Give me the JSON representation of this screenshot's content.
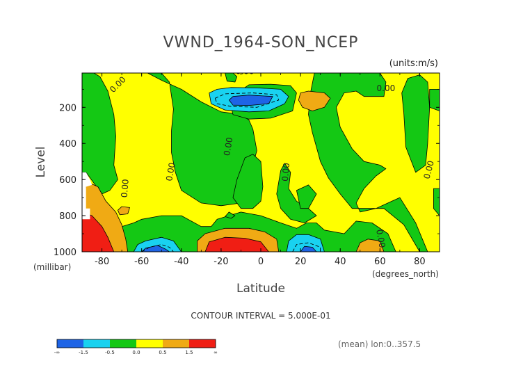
{
  "chart_data": {
    "type": "heatmap",
    "title": "VWND_1964-SON_NCEP",
    "units": "(units:m/s)",
    "xlabel": "Latitude",
    "x_units": "(degrees_north)",
    "ylabel": "Level",
    "y_units": "(millibar)",
    "xlim": [
      -90,
      90
    ],
    "ylim": [
      1000,
      10
    ],
    "y_scale": "linear, inverted (pressure increasing downward)",
    "x_ticks": [
      "-80",
      "-60",
      "-40",
      "-20",
      "0",
      "20",
      "40",
      "60",
      "80"
    ],
    "x_tick_values": [
      -80,
      -60,
      -40,
      -20,
      0,
      20,
      40,
      60,
      80
    ],
    "y_ticks": [
      "200",
      "400",
      "600",
      "800",
      "1000"
    ],
    "y_tick_values": [
      200,
      400,
      600,
      800,
      1000
    ],
    "contour_interval_text": "CONTOUR INTERVAL = 5.000E-01",
    "footer_text": "(mean) lon:0..357.5",
    "contour_labels": [
      "0.00",
      "0.00",
      "0.00",
      "0.00",
      "0.00",
      "0.00",
      "0.00",
      "0.00",
      "0.00"
    ],
    "colorbar": {
      "colors": [
        "#1e64e6",
        "#19d2f0",
        "#14c814",
        "#ffff00",
        "#f0aa14",
        "#f01e14"
      ],
      "tick_labels": [
        "-∞",
        "-1.5",
        "-0.5",
        "0.0",
        "0.5",
        "1.5",
        "∞"
      ]
    },
    "background_level_color": "#ffff00",
    "regions": [
      {
        "color": "#14c814",
        "points": [
          [
            -90,
            10
          ],
          [
            -84,
            10
          ],
          [
            -81,
            30
          ],
          [
            -77,
            110
          ],
          [
            -74,
            240
          ],
          [
            -73,
            360
          ],
          [
            -74,
            520
          ],
          [
            -72,
            600
          ],
          [
            -76,
            660
          ],
          [
            -80,
            680
          ],
          [
            -84,
            620
          ],
          [
            -88,
            560
          ],
          [
            -90,
            560
          ]
        ]
      },
      {
        "color": "#14c814",
        "points": [
          [
            -57,
            10
          ],
          [
            -50,
            10
          ],
          [
            -46,
            60
          ],
          [
            -44,
            210
          ],
          [
            -45,
            330
          ],
          [
            -45,
            450
          ],
          [
            -43,
            560
          ],
          [
            -40,
            660
          ],
          [
            -30,
            730
          ],
          [
            -20,
            745
          ],
          [
            -10,
            730
          ],
          [
            -5,
            560
          ],
          [
            -2,
            440
          ],
          [
            -4,
            320
          ],
          [
            -6,
            270
          ],
          [
            -10,
            240
          ],
          [
            -20,
            225
          ],
          [
            -30,
            170
          ],
          [
            -40,
            100
          ],
          [
            -50,
            50
          ]
        ]
      },
      {
        "color": "#14c814",
        "points": [
          [
            -18,
            10
          ],
          [
            -14,
            10
          ],
          [
            -12,
            30
          ],
          [
            -13,
            60
          ],
          [
            -17,
            55
          ]
        ]
      },
      {
        "color": "#14c814",
        "points": [
          [
            -16,
            150
          ],
          [
            -12,
            120
          ],
          [
            -6,
            75
          ],
          [
            5,
            72
          ],
          [
            15,
            80
          ],
          [
            18,
            120
          ],
          [
            16,
            220
          ],
          [
            5,
            260
          ],
          [
            -6,
            265
          ],
          [
            -14,
            240
          ]
        ]
      },
      {
        "color": "#14c814",
        "points": [
          [
            27,
            10
          ],
          [
            60,
            10
          ],
          [
            63,
            60
          ],
          [
            62,
            140
          ],
          [
            52,
            140
          ],
          [
            48,
            110
          ],
          [
            42,
            120
          ],
          [
            38,
            200
          ],
          [
            40,
            310
          ],
          [
            46,
            430
          ],
          [
            52,
            500
          ],
          [
            60,
            520
          ],
          [
            63,
            540
          ],
          [
            58,
            580
          ],
          [
            52,
            650
          ],
          [
            48,
            730
          ],
          [
            50,
            780
          ],
          [
            58,
            760
          ],
          [
            66,
            720
          ],
          [
            70,
            700
          ],
          [
            78,
            840
          ],
          [
            84,
            1000
          ],
          [
            80,
            1000
          ],
          [
            72,
            850
          ],
          [
            62,
            760
          ],
          [
            53,
            760
          ],
          [
            46,
            760
          ],
          [
            40,
            680
          ],
          [
            34,
            590
          ],
          [
            30,
            500
          ],
          [
            28,
            420
          ],
          [
            26,
            340
          ],
          [
            24,
            240
          ],
          [
            25,
            120
          ]
        ]
      },
      {
        "color": "#14c814",
        "points": [
          [
            74,
            40
          ],
          [
            80,
            20
          ],
          [
            84,
            60
          ],
          [
            85,
            200
          ],
          [
            84,
            400
          ],
          [
            83,
            520
          ],
          [
            78,
            560
          ],
          [
            73,
            420
          ],
          [
            72,
            230
          ],
          [
            71,
            120
          ]
        ]
      },
      {
        "color": "#14c814",
        "points": [
          [
            85,
            100
          ],
          [
            90,
            100
          ],
          [
            90,
            220
          ],
          [
            85,
            200
          ]
        ]
      },
      {
        "color": "#14c814",
        "points": [
          [
            87,
            650
          ],
          [
            90,
            650
          ],
          [
            90,
            800
          ],
          [
            87,
            760
          ]
        ]
      },
      {
        "color": "#14c814",
        "points": [
          [
            -8,
            480
          ],
          [
            -4,
            460
          ],
          [
            0,
            500
          ],
          [
            1,
            640
          ],
          [
            0,
            720
          ],
          [
            -4,
            760
          ],
          [
            -10,
            760
          ],
          [
            -14,
            700
          ],
          [
            -12,
            600
          ]
        ]
      },
      {
        "color": "#14c814",
        "points": [
          [
            10,
            550
          ],
          [
            12,
            510
          ],
          [
            15,
            560
          ],
          [
            14,
            650
          ],
          [
            18,
            720
          ],
          [
            24,
            760
          ],
          [
            28,
            800
          ],
          [
            22,
            840
          ],
          [
            15,
            820
          ],
          [
            10,
            760
          ],
          [
            8,
            680
          ]
        ]
      },
      {
        "color": "#14c814",
        "points": [
          [
            18,
            660
          ],
          [
            24,
            630
          ],
          [
            28,
            680
          ],
          [
            24,
            760
          ],
          [
            20,
            760
          ]
        ]
      },
      {
        "color": "#14c814",
        "points": [
          [
            -56,
            1000
          ],
          [
            -75,
            1000
          ],
          [
            -75,
            920
          ],
          [
            -70,
            860
          ],
          [
            -64,
            840
          ],
          [
            -60,
            820
          ],
          [
            -50,
            800
          ],
          [
            -40,
            800
          ],
          [
            -30,
            860
          ],
          [
            -25,
            860
          ],
          [
            -22,
            820
          ],
          [
            -10,
            780
          ],
          [
            0,
            800
          ],
          [
            10,
            840
          ],
          [
            18,
            870
          ],
          [
            23,
            840
          ],
          [
            28,
            840
          ],
          [
            32,
            880
          ],
          [
            42,
            900
          ],
          [
            48,
            830
          ],
          [
            56,
            840
          ],
          [
            64,
            900
          ],
          [
            68,
            1000
          ]
        ]
      },
      {
        "color": "#14c814",
        "points": [
          [
            -18,
            805
          ],
          [
            -16,
            780
          ],
          [
            -13,
            800
          ],
          [
            -15,
            815
          ]
        ]
      },
      {
        "color": "#19d2f0",
        "points": [
          [
            -26,
            120
          ],
          [
            -22,
            100
          ],
          [
            -15,
            90
          ],
          [
            -2,
            92
          ],
          [
            10,
            100
          ],
          [
            14,
            140
          ],
          [
            12,
            180
          ],
          [
            4,
            220
          ],
          [
            -6,
            225
          ],
          [
            -18,
            215
          ],
          [
            -25,
            180
          ]
        ]
      },
      {
        "color": "#1e64e6",
        "points": [
          [
            -16,
            160
          ],
          [
            -14,
            140
          ],
          [
            -6,
            132
          ],
          [
            6,
            140
          ],
          [
            4,
            180
          ],
          [
            -6,
            190
          ],
          [
            -14,
            188
          ]
        ]
      },
      {
        "color": "#19d2f0",
        "points": [
          [
            -64,
            1000
          ],
          [
            -62,
            960
          ],
          [
            -58,
            940
          ],
          [
            -50,
            920
          ],
          [
            -44,
            940
          ],
          [
            -40,
            1000
          ]
        ]
      },
      {
        "color": "#1e64e6",
        "points": [
          [
            -60,
            1000
          ],
          [
            -58,
            980
          ],
          [
            -52,
            965
          ],
          [
            -48,
            985
          ],
          [
            -46,
            1000
          ]
        ]
      },
      {
        "color": "#19d2f0",
        "points": [
          [
            13,
            1000
          ],
          [
            14,
            940
          ],
          [
            18,
            905
          ],
          [
            24,
            905
          ],
          [
            30,
            930
          ],
          [
            32,
            1000
          ]
        ]
      },
      {
        "color": "#1e64e6",
        "points": [
          [
            20,
            1000
          ],
          [
            22,
            970
          ],
          [
            26,
            975
          ],
          [
            28,
            1000
          ]
        ]
      },
      {
        "color": "#f0aa14",
        "points": [
          [
            20,
            120
          ],
          [
            24,
            110
          ],
          [
            32,
            120
          ],
          [
            35,
            150
          ],
          [
            32,
            200
          ],
          [
            26,
            220
          ],
          [
            21,
            200
          ],
          [
            19,
            160
          ]
        ]
      },
      {
        "color": "#f0aa14",
        "points": [
          [
            -72,
            770
          ],
          [
            -70,
            750
          ],
          [
            -66,
            755
          ],
          [
            -67,
            790
          ],
          [
            -71,
            795
          ]
        ]
      },
      {
        "color": "#f0aa14",
        "points": [
          [
            -88,
            610
          ],
          [
            -82,
            640
          ],
          [
            -78,
            720
          ],
          [
            -73,
            780
          ],
          [
            -70,
            850
          ],
          [
            -68,
            930
          ],
          [
            -67,
            1000
          ],
          [
            -90,
            1000
          ]
        ]
      },
      {
        "color": "#f0aa14",
        "points": [
          [
            -32,
            1000
          ],
          [
            -32,
            940
          ],
          [
            -28,
            900
          ],
          [
            -18,
            870
          ],
          [
            -6,
            870
          ],
          [
            2,
            890
          ],
          [
            8,
            930
          ],
          [
            9,
            1000
          ]
        ]
      },
      {
        "color": "#f0aa14",
        "points": [
          [
            48,
            1000
          ],
          [
            50,
            950
          ],
          [
            54,
            930
          ],
          [
            60,
            940
          ],
          [
            62,
            1000
          ]
        ]
      },
      {
        "color": "#f01e14",
        "points": [
          [
            -90,
            780
          ],
          [
            -85,
            800
          ],
          [
            -80,
            860
          ],
          [
            -77,
            920
          ],
          [
            -74,
            1000
          ],
          [
            -90,
            1000
          ]
        ]
      },
      {
        "color": "#f01e14",
        "points": [
          [
            -28,
            1000
          ],
          [
            -26,
            945
          ],
          [
            -18,
            920
          ],
          [
            -8,
            925
          ],
          [
            0,
            945
          ],
          [
            4,
            1000
          ]
        ]
      }
    ],
    "missing_regions": [
      {
        "points": [
          [
            -90,
            560
          ],
          [
            -88,
            560
          ],
          [
            -86,
            600
          ],
          [
            -85,
            630
          ],
          [
            -88,
            640
          ],
          [
            -88,
            760
          ],
          [
            -86,
            760
          ],
          [
            -86,
            820
          ],
          [
            -90,
            820
          ]
        ]
      }
    ],
    "dashed_contours": [
      {
        "points": [
          [
            -23,
            150
          ],
          [
            -18,
            125
          ],
          [
            -4,
            120
          ],
          [
            8,
            130
          ],
          [
            9,
            160
          ],
          [
            -2,
            200
          ],
          [
            -15,
            195
          ],
          [
            -22,
            180
          ],
          [
            -23,
            150
          ]
        ]
      },
      {
        "points": [
          [
            -60,
            1000
          ],
          [
            -56,
            975
          ],
          [
            -50,
            960
          ],
          [
            -46,
            975
          ],
          [
            -44,
            1000
          ]
        ]
      },
      {
        "points": [
          [
            16,
            1000
          ],
          [
            18,
            960
          ],
          [
            24,
            950
          ],
          [
            30,
            975
          ],
          [
            30,
            1000
          ]
        ]
      }
    ]
  }
}
